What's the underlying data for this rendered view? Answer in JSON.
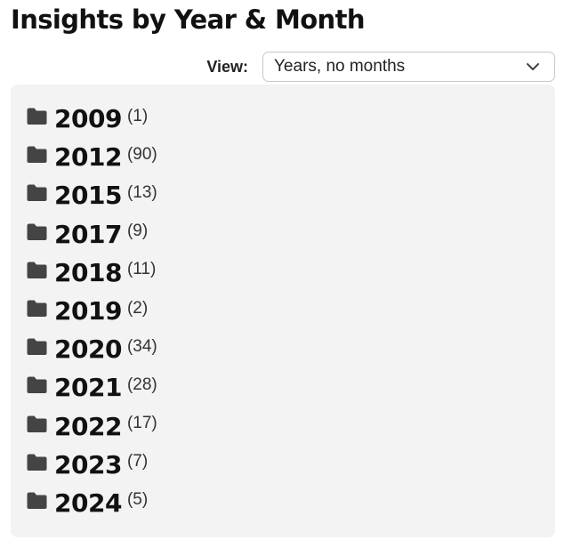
{
  "header": {
    "title": "Insights by Year & Month"
  },
  "view": {
    "label": "View:",
    "selected": "Years, no months"
  },
  "years": [
    {
      "year": "2009",
      "count": "(1)"
    },
    {
      "year": "2012",
      "count": "(90)"
    },
    {
      "year": "2015",
      "count": "(13)"
    },
    {
      "year": "2017",
      "count": "(9)"
    },
    {
      "year": "2018",
      "count": "(11)"
    },
    {
      "year": "2019",
      "count": "(2)"
    },
    {
      "year": "2020",
      "count": "(34)"
    },
    {
      "year": "2021",
      "count": "(28)"
    },
    {
      "year": "2022",
      "count": "(17)"
    },
    {
      "year": "2023",
      "count": "(7)"
    },
    {
      "year": "2024",
      "count": "(5)"
    }
  ],
  "icons": {
    "year_item": "folder-icon",
    "select": "chevron-down-icon"
  },
  "colors": {
    "panel_background": "#f3f3f3",
    "folder": "#444444",
    "text": "#111111"
  }
}
